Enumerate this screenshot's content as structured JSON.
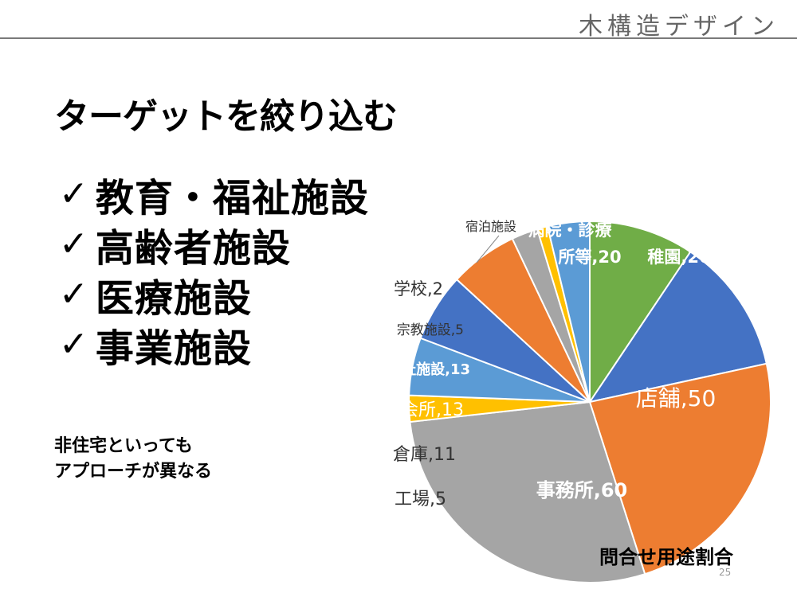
{
  "header": {
    "brand": "木構造デザイン"
  },
  "slide": {
    "title": "ターゲットを絞り込む",
    "check_glyph": "✓",
    "targets": [
      "教育・福祉施設",
      "高齢者施設",
      "医療施設",
      "事業施設"
    ],
    "note_lines": [
      "非住宅といっても",
      "アプローチが異なる"
    ],
    "page_number": "25"
  },
  "chart_data": {
    "type": "pie",
    "title": "問合せ用途割合",
    "slices": [
      {
        "label": "病院・診療所等",
        "value": 20,
        "color": "#70AD47"
      },
      {
        "label": "幼稚園",
        "value": 26,
        "color": "#4472C4"
      },
      {
        "label": "店舗",
        "value": 50,
        "color": "#ED7D31"
      },
      {
        "label": "事務所",
        "value": 60,
        "color": "#A5A5A5"
      },
      {
        "label": "工場",
        "value": 5,
        "color": "#FFC000"
      },
      {
        "label": "倉庫",
        "value": 11,
        "color": "#5B9BD5"
      },
      {
        "label": "集会所",
        "value": 13,
        "color": "#4472C4"
      },
      {
        "label": "福祉施設",
        "value": 13,
        "color": "#ED7D31"
      },
      {
        "label": "宗教施設",
        "value": 5,
        "color": "#A5A5A5"
      },
      {
        "label": "学校",
        "value": 2,
        "color": "#FFC000"
      },
      {
        "label": "宿泊施設",
        "value": 8,
        "color": "#5B9BD5"
      }
    ],
    "data_labels": [
      "所等,20",
      "稚園,26",
      "店舗,50",
      "事務所,60",
      "工場,5",
      "倉庫,11",
      "集会所,13",
      "福祉施設,13",
      "宗教施設,5",
      "学校,2",
      "宿泊施設"
    ],
    "extra_labels": [
      "病院・診療",
      "幼"
    ]
  }
}
